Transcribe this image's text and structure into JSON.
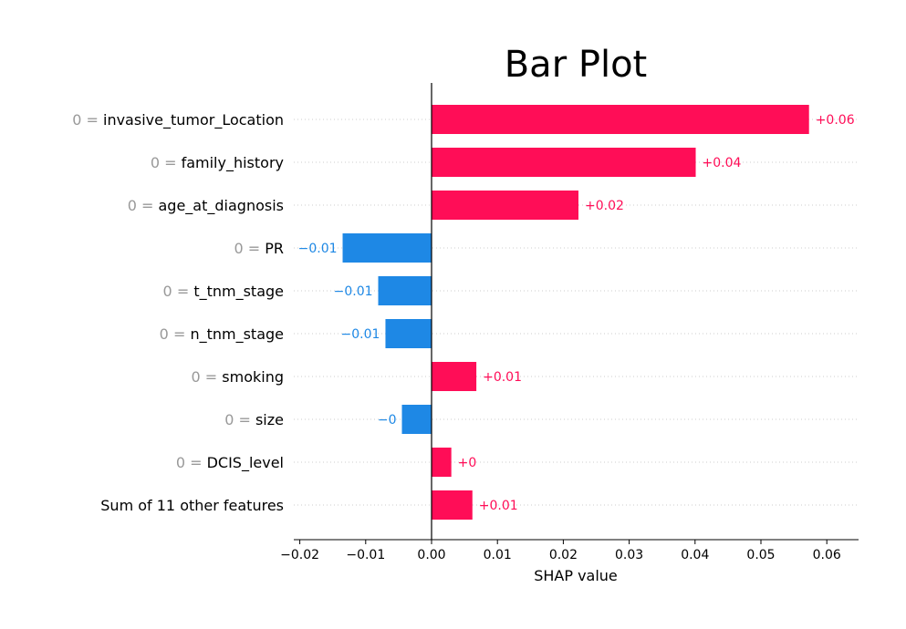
{
  "colors": {
    "positive": "#ff0d57",
    "negative": "#1e88e5",
    "feature_value": "#999999",
    "grid": "#cccccc",
    "axis": "#000000"
  },
  "chart_data": {
    "type": "bar",
    "orientation": "horizontal",
    "title": "Bar Plot",
    "xlabel": "SHAP value",
    "ylabel": "",
    "xlim": [
      -0.021,
      0.065
    ],
    "xticks": [
      -0.02,
      -0.01,
      0.0,
      0.01,
      0.02,
      0.03,
      0.04,
      0.05,
      0.06
    ],
    "xtick_labels": [
      "−0.02",
      "−0.01",
      "0.00",
      "0.01",
      "0.02",
      "0.03",
      "0.04",
      "0.05",
      "0.06"
    ],
    "grid": "horizontal dotted",
    "categories": [
      {
        "value": "0 =",
        "name": "invasive_tumor_Location"
      },
      {
        "value": "0 =",
        "name": "family_history"
      },
      {
        "value": "0 =",
        "name": "age_at_diagnosis"
      },
      {
        "value": "0 =",
        "name": "PR"
      },
      {
        "value": "0 =",
        "name": "t_tnm_stage"
      },
      {
        "value": "0 =",
        "name": "n_tnm_stage"
      },
      {
        "value": "0 =",
        "name": "smoking"
      },
      {
        "value": "0 =",
        "name": "size"
      },
      {
        "value": "0 =",
        "name": "DCIS_level"
      },
      {
        "value": "",
        "name": "Sum of 11 other features"
      }
    ],
    "values": [
      0.0573,
      0.0401,
      0.0223,
      -0.0135,
      -0.0081,
      -0.007,
      0.0068,
      -0.0045,
      0.003,
      0.0062
    ],
    "data_labels": [
      "+0.06",
      "+0.04",
      "+0.02",
      "−0.01",
      "−0.01",
      "−0.01",
      "+0.01",
      "−0",
      "+0",
      "+0.01"
    ]
  }
}
